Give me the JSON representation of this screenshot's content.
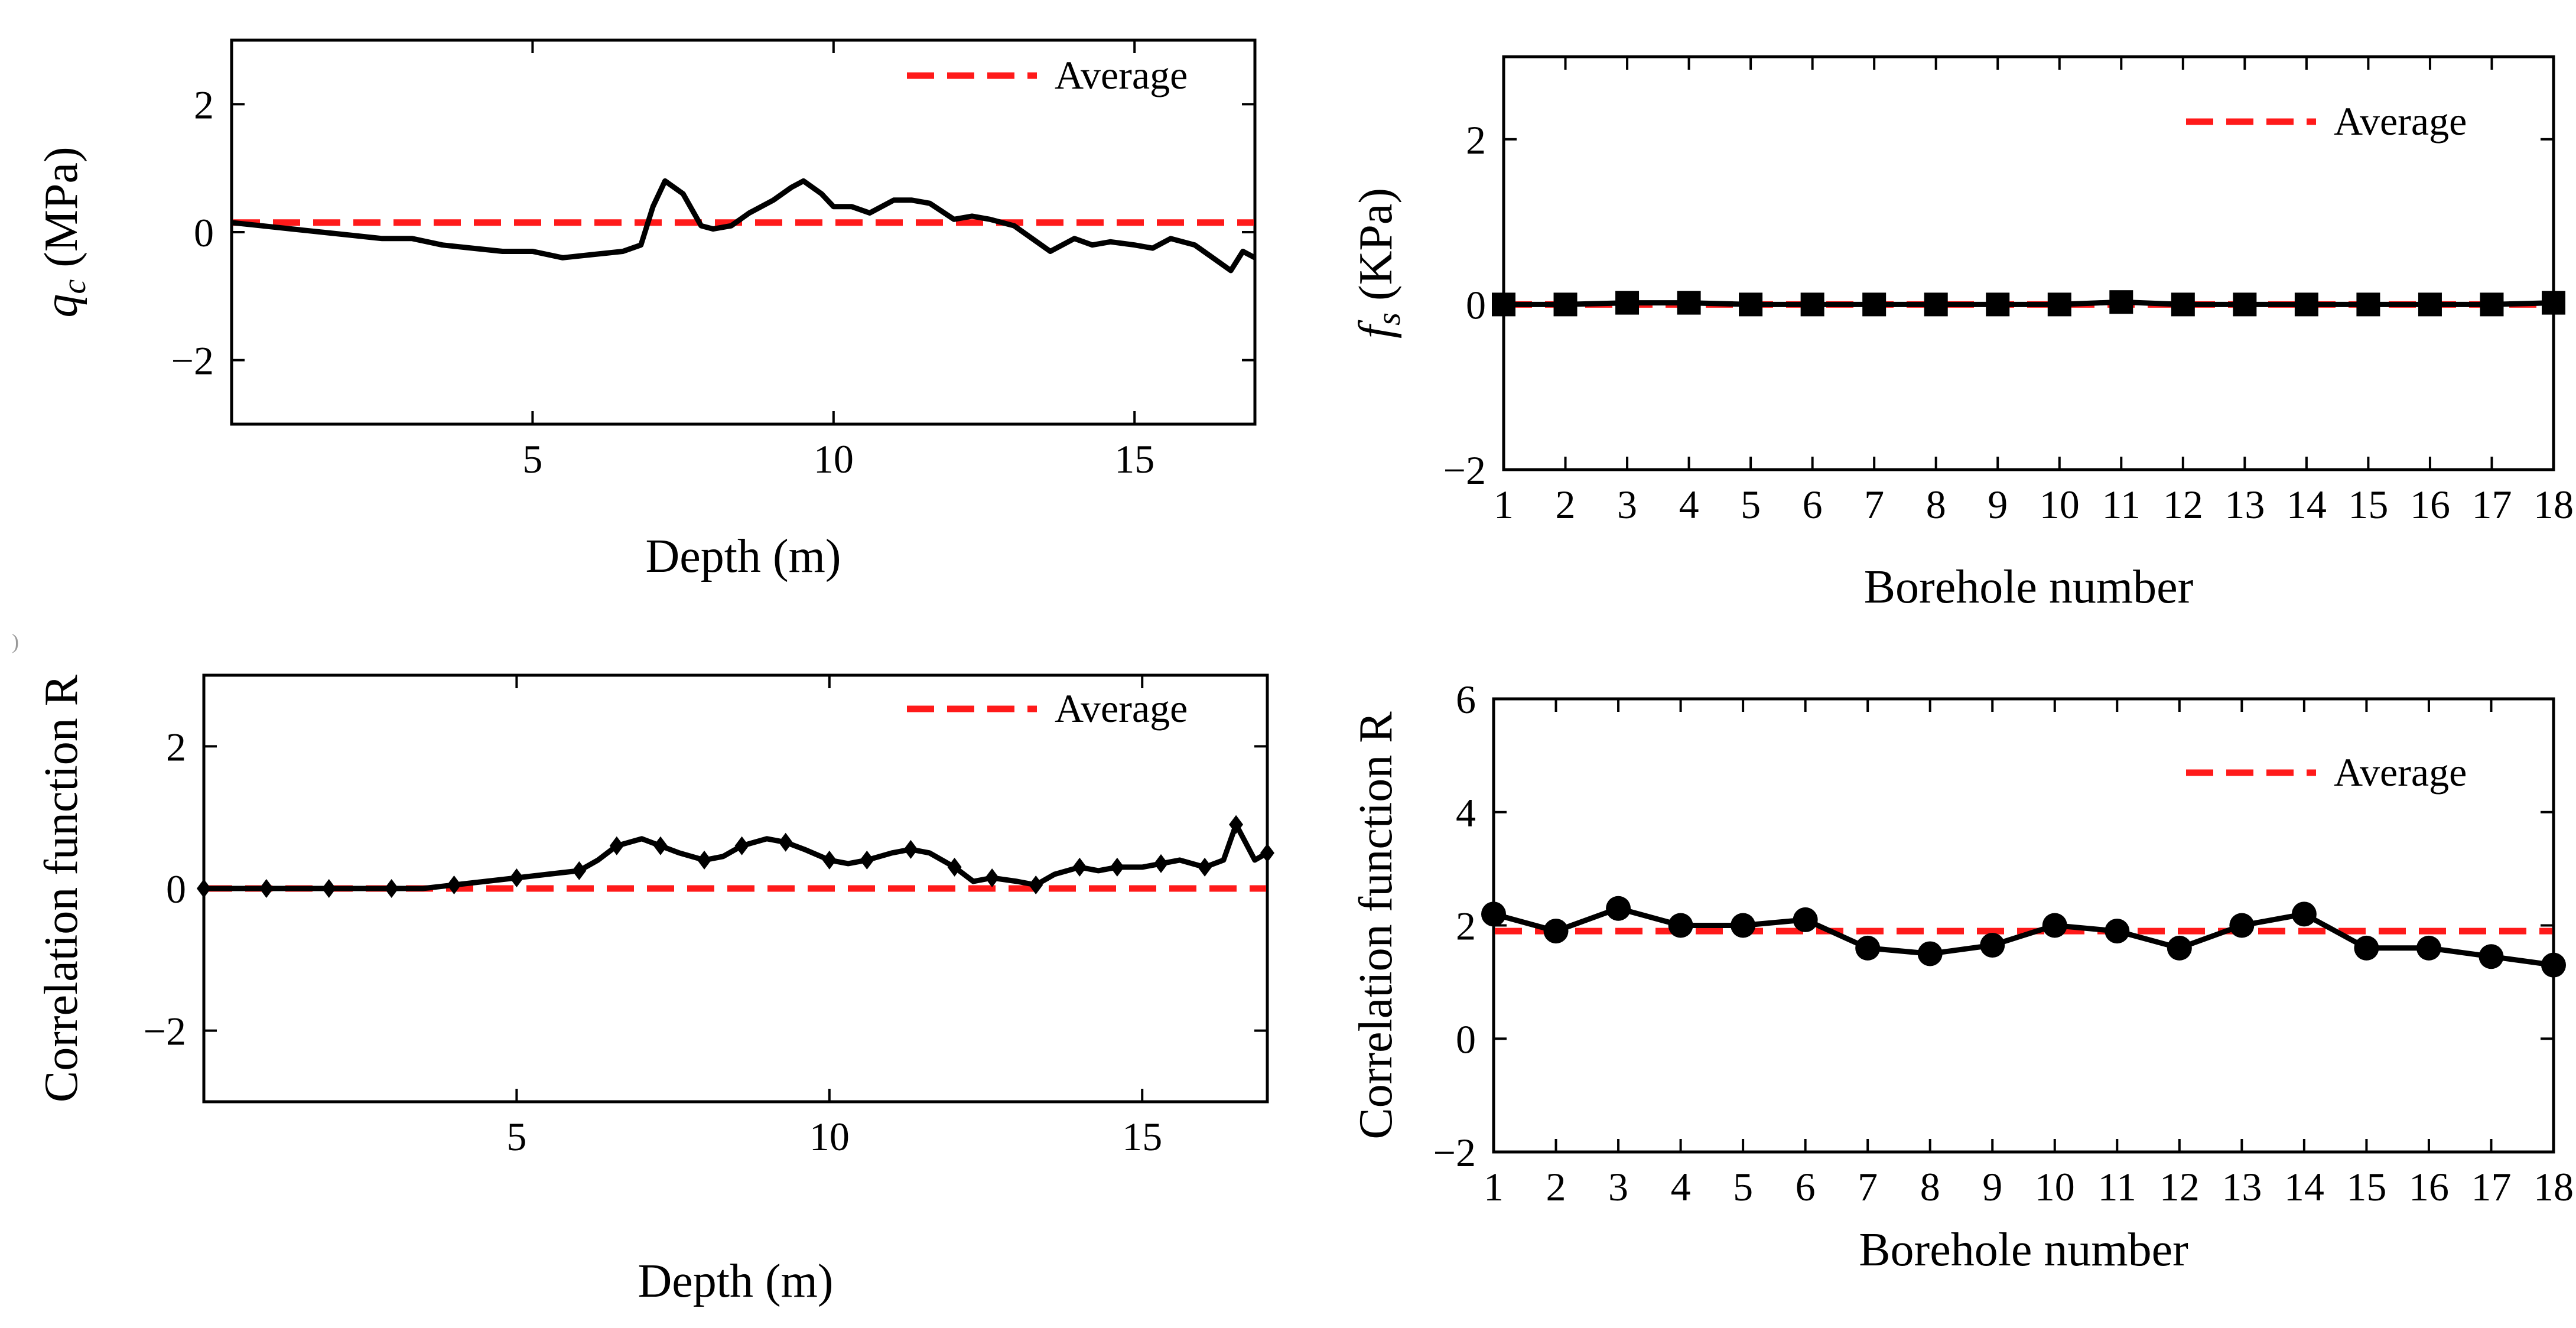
{
  "chart_data": [
    {
      "id": "tl",
      "type": "line",
      "xlabel": "Depth (m)",
      "ylabel_prefix": "q",
      "ylabel_sub": "c",
      "ylabel_suffix": " (MPa)",
      "xlim": [
        0,
        17
      ],
      "ylim": [
        -3,
        3
      ],
      "xticks": [
        5,
        10,
        15
      ],
      "yticks": [
        -2,
        0,
        2
      ],
      "legend": "Average",
      "legend_position": "top-right",
      "average": 0.15,
      "series": [
        {
          "name": "q_c",
          "x": [
            0,
            0.5,
            1,
            1.5,
            2,
            2.5,
            3,
            3.5,
            4,
            4.5,
            5,
            5.5,
            6,
            6.5,
            6.8,
            7,
            7.2,
            7.5,
            7.8,
            8,
            8.3,
            8.6,
            9,
            9.3,
            9.5,
            9.8,
            10,
            10.3,
            10.6,
            11,
            11.3,
            11.6,
            12,
            12.3,
            12.6,
            13,
            13.3,
            13.6,
            14,
            14.3,
            14.6,
            15,
            15.3,
            15.6,
            16,
            16.3,
            16.6,
            16.8,
            17
          ],
          "y": [
            0.15,
            0.1,
            0.05,
            0,
            -0.05,
            -0.1,
            -0.1,
            -0.2,
            -0.25,
            -0.3,
            -0.3,
            -0.4,
            -0.35,
            -0.3,
            -0.2,
            0.4,
            0.8,
            0.6,
            0.1,
            0.05,
            0.1,
            0.3,
            0.5,
            0.7,
            0.8,
            0.6,
            0.4,
            0.4,
            0.3,
            0.5,
            0.5,
            0.45,
            0.2,
            0.25,
            0.2,
            0.1,
            -0.1,
            -0.3,
            -0.1,
            -0.2,
            -0.15,
            -0.2,
            -0.25,
            -0.1,
            -0.2,
            -0.4,
            -0.6,
            -0.3,
            -0.4
          ]
        }
      ]
    },
    {
      "id": "tr",
      "type": "line",
      "xlabel": "Borehole number",
      "ylabel_prefix": "f",
      "ylabel_sub": "s",
      "ylabel_suffix": " (KPa)",
      "xlim": [
        1,
        18
      ],
      "ylim": [
        -2,
        3
      ],
      "xticks": [
        1,
        2,
        3,
        4,
        5,
        6,
        7,
        8,
        9,
        10,
        11,
        12,
        13,
        14,
        15,
        16,
        17,
        18
      ],
      "yticks": [
        -2,
        0,
        2
      ],
      "legend": "Average",
      "legend_position": "top-right",
      "average": 0.0,
      "marker": "square",
      "series": [
        {
          "name": "f_s",
          "x": [
            1,
            2,
            3,
            4,
            5,
            6,
            7,
            8,
            9,
            10,
            11,
            12,
            13,
            14,
            15,
            16,
            17,
            18
          ],
          "y": [
            0,
            0,
            0.02,
            0.02,
            0,
            0,
            0,
            0,
            0,
            0,
            0.03,
            0,
            0,
            0,
            0,
            0,
            0,
            0.02
          ]
        }
      ]
    },
    {
      "id": "bl",
      "type": "line",
      "xlabel": "Depth (m)",
      "ylabel": "Correlation function R",
      "xlim": [
        0,
        17
      ],
      "ylim": [
        -3,
        3
      ],
      "xticks": [
        5,
        10,
        15
      ],
      "yticks": [
        -2,
        0,
        2
      ],
      "legend": "Average",
      "legend_position": "top-right",
      "average": 0.0,
      "marker": "diamond",
      "series": [
        {
          "name": "R",
          "x": [
            0,
            0.5,
            1,
            1.5,
            2,
            2.5,
            3,
            3.5,
            4,
            4.5,
            5,
            5.5,
            6,
            6.3,
            6.6,
            7,
            7.3,
            7.6,
            8,
            8.3,
            8.6,
            9,
            9.3,
            9.6,
            10,
            10.3,
            10.6,
            11,
            11.3,
            11.6,
            12,
            12.3,
            12.6,
            13,
            13.3,
            13.6,
            14,
            14.3,
            14.6,
            15,
            15.3,
            15.6,
            16,
            16.3,
            16.5,
            16.8,
            17
          ],
          "y": [
            0,
            0,
            0,
            0,
            0,
            0,
            0,
            0,
            0.05,
            0.1,
            0.15,
            0.2,
            0.25,
            0.4,
            0.6,
            0.7,
            0.6,
            0.5,
            0.4,
            0.45,
            0.6,
            0.7,
            0.65,
            0.55,
            0.4,
            0.35,
            0.4,
            0.5,
            0.55,
            0.5,
            0.3,
            0.1,
            0.15,
            0.1,
            0.05,
            0.2,
            0.3,
            0.25,
            0.3,
            0.3,
            0.35,
            0.4,
            0.3,
            0.4,
            0.9,
            0.4,
            0.5
          ]
        }
      ]
    },
    {
      "id": "br",
      "type": "line",
      "xlabel": "Borehole number",
      "ylabel": "Correlation function R",
      "xlim": [
        1,
        18
      ],
      "ylim": [
        -2,
        6
      ],
      "xticks": [
        1,
        2,
        3,
        4,
        5,
        6,
        7,
        8,
        9,
        10,
        11,
        12,
        13,
        14,
        15,
        16,
        17,
        18
      ],
      "yticks": [
        -2,
        0,
        2,
        4,
        6
      ],
      "legend": "Average",
      "legend_position": "top-right",
      "average": 1.9,
      "marker": "circle",
      "series": [
        {
          "name": "R",
          "x": [
            1,
            2,
            3,
            4,
            5,
            6,
            7,
            8,
            9,
            10,
            11,
            12,
            13,
            14,
            15,
            16,
            17,
            18
          ],
          "y": [
            2.2,
            1.9,
            2.3,
            2.0,
            2.0,
            2.1,
            1.6,
            1.5,
            1.65,
            2.0,
            1.9,
            1.6,
            2.0,
            2.2,
            1.6,
            1.6,
            1.45,
            1.3
          ]
        }
      ]
    }
  ],
  "stray_mark": ")"
}
